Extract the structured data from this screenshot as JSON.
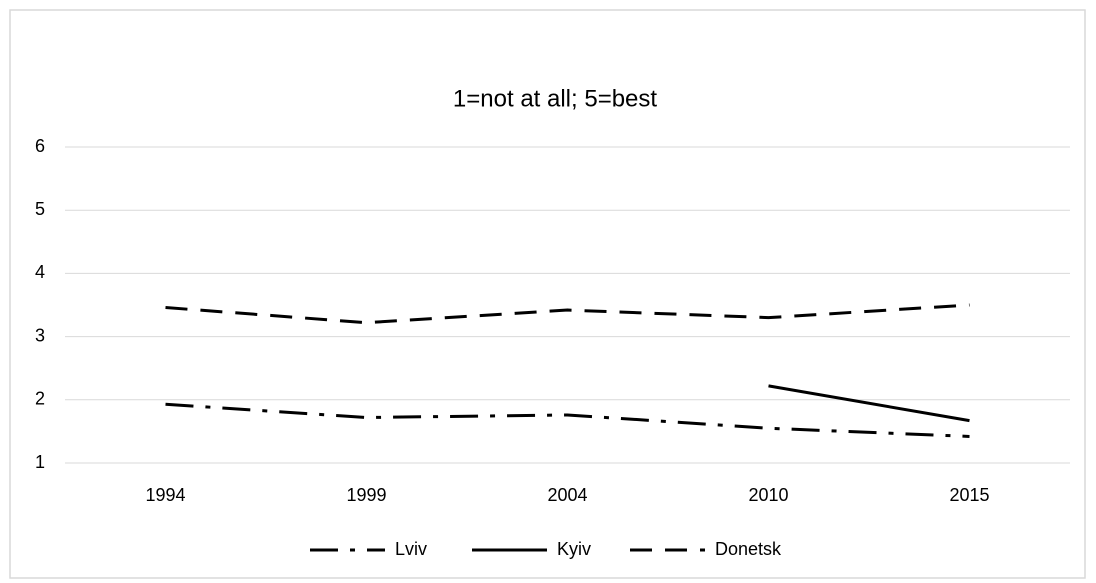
{
  "chart_data": {
    "type": "line",
    "title": "1=not at all; 5=best",
    "categories": [
      "1994",
      "1999",
      "2004",
      "2010",
      "2015"
    ],
    "series": [
      {
        "name": "Lviv",
        "color": "#000000",
        "dash": "dash-dot",
        "values": [
          1.93,
          1.72,
          1.76,
          1.55,
          1.42
        ]
      },
      {
        "name": "Kyiv",
        "color": "#000000",
        "dash": "solid",
        "values": [
          null,
          null,
          null,
          2.22,
          1.67
        ]
      },
      {
        "name": "Donetsk",
        "color": "#000000",
        "dash": "dashed",
        "values": [
          3.46,
          3.22,
          3.42,
          3.3,
          3.5
        ]
      }
    ],
    "ylim": [
      1,
      6
    ],
    "yticks": [
      1,
      2,
      3,
      4,
      5,
      6
    ],
    "grid": true,
    "legend": "bottom"
  }
}
